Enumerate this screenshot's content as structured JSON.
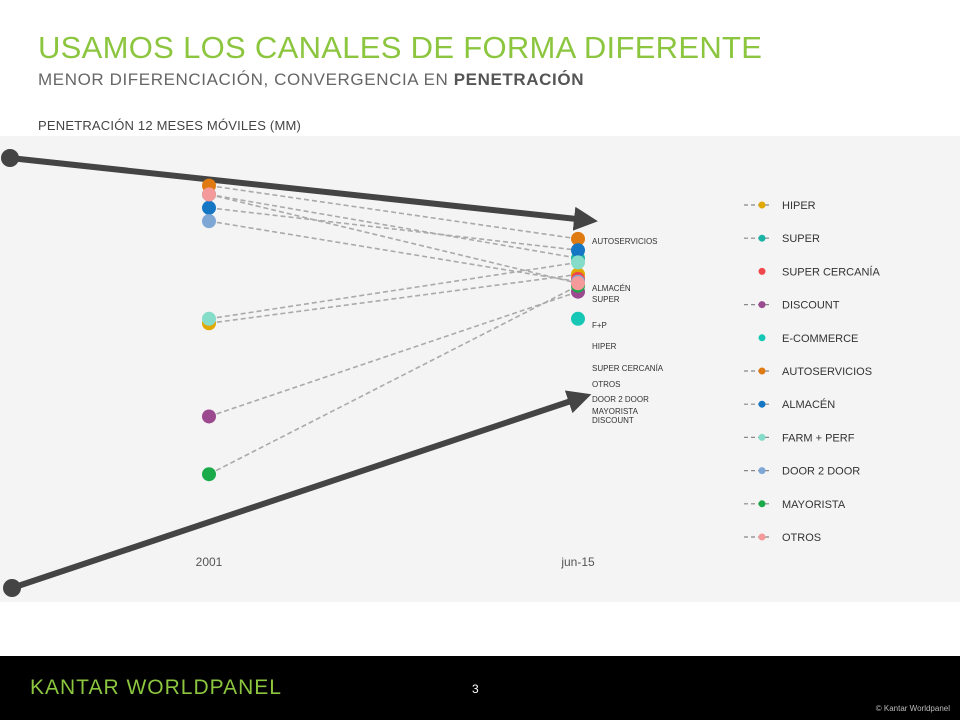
{
  "header": {
    "title": "USAMOS LOS CANALES DE FORMA DIFERENTE",
    "subtitle_prefix": "MENOR DIFERENCIACIÓN, CONVERGENCIA EN ",
    "subtitle_bold": "PENETRACIÓN"
  },
  "chart_label": "PENETRACIÓN 12 MESES MÓVILES (MM)",
  "footer": {
    "logo": "KANTAR WORLDPANEL",
    "page_number": "3",
    "copyright": "© Kantar Worldpanel"
  },
  "chart_data": {
    "type": "slope",
    "x": [
      "2001",
      "jun-15"
    ],
    "series": [
      {
        "name": "HIPER",
        "color": "#e0a800",
        "values": [
          61,
          72
        ],
        "end_label": "HIPER"
      },
      {
        "name": "SUPER",
        "color": "#1ab3a6",
        "values": [
          90,
          77
        ],
        "end_label": "SUPER"
      },
      {
        "name": "SUPER CERCANÍA",
        "color": "#f0474a",
        "values": [
          null,
          71
        ],
        "end_label": "SUPER CERCANÍA"
      },
      {
        "name": "DISCOUNT",
        "color": "#9b4a8f",
        "values": [
          40,
          69
        ],
        "end_label": "DISCOUNT"
      },
      {
        "name": "E-COMMERCE",
        "color": "#17c7b5",
        "values": [
          null,
          62
        ],
        "end_label": ""
      },
      {
        "name": "AUTOSERVICIOS",
        "color": "#e07b13",
        "values": [
          92,
          80
        ],
        "end_label": "AUTOSERVICIOS"
      },
      {
        "name": "ALMACÉN",
        "color": "#1577c4",
        "values": [
          87,
          77
        ],
        "end_label": "ALMACÉN"
      },
      {
        "name": "FARM + PERF",
        "color": "#85dcc8",
        "values": [
          62,
          72
        ],
        "end_label": "F+P"
      },
      {
        "name": "DOOR 2 DOOR",
        "color": "#7fa7d6",
        "values": [
          84,
          69
        ],
        "end_label": "DOOR 2 DOOR"
      },
      {
        "name": "MAYORISTA",
        "color": "#1aaa4a",
        "values": [
          27,
          69
        ],
        "end_label": "MAYORISTA"
      },
      {
        "name": "OTROS",
        "color": "#f59a9a",
        "values": [
          90,
          70
        ],
        "end_label": "OTROS"
      }
    ],
    "legend_position": "right",
    "grid": false
  }
}
